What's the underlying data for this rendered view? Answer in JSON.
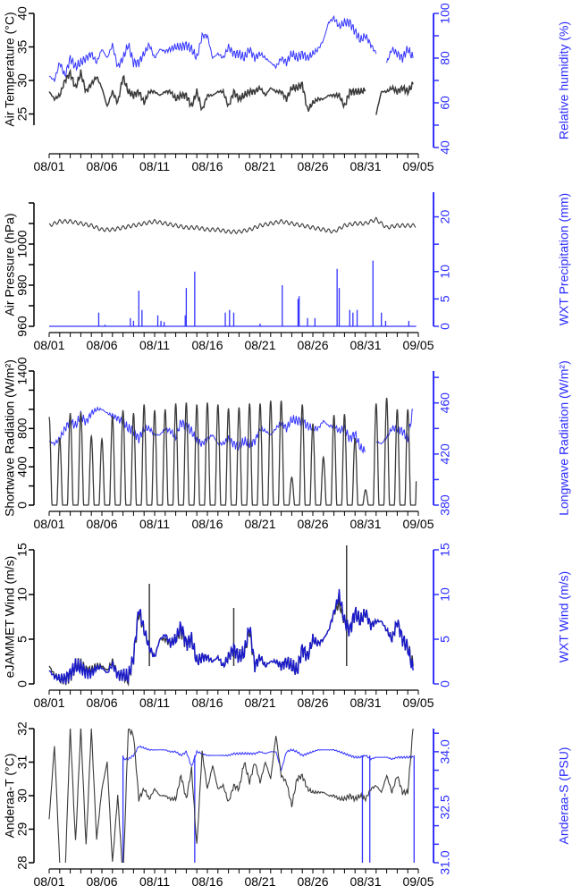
{
  "x_labels": [
    "08/01",
    "08/06",
    "08/11",
    "08/16",
    "08/21",
    "08/26",
    "08/31",
    "09/05"
  ],
  "colors": {
    "primary": "#3a3a3a",
    "secondary": "#3333ff",
    "wind_secondary": "#1a1acc"
  },
  "chart_data": [
    {
      "type": "line",
      "xlabel": "",
      "x_start_day": 0,
      "x_step_days": 0.5,
      "xlim_days": [
        0,
        35
      ],
      "left": {
        "label": "Air Temperature (°C)",
        "ylim": [
          20,
          40
        ],
        "ticks": [
          25,
          30,
          35,
          40
        ],
        "tick_labels": [
          "25",
          "30",
          "35",
          "40"
        ],
        "values": [
          29.5,
          28.5,
          29,
          31,
          32,
          30,
          32,
          29.5,
          30.5,
          31.5,
          30,
          27.5,
          29.5,
          28,
          31.5,
          29.5,
          29,
          29.5,
          28,
          29.5,
          29.5,
          29,
          29.5,
          29.5,
          28.5,
          29,
          29,
          27.5,
          29.5,
          27,
          29,
          29,
          29.5,
          29.5,
          27.5,
          29.5,
          28.5,
          29,
          29.5,
          29.5,
          30,
          29,
          30,
          29.5,
          29.5,
          28.5,
          30,
          30,
          30.5,
          27,
          28,
          28.5,
          28.5,
          29,
          29,
          29,
          27.5,
          29.5,
          29.5,
          29.5,
          29.7,
          null,
          26.5,
          29.5,
          29.5,
          30,
          29.5,
          30,
          29.5,
          30.5
        ]
      },
      "right": {
        "label": "Relative humidity (%)",
        "ylim": [
          40,
          100
        ],
        "ticks": [
          40,
          50,
          60,
          70,
          80,
          90,
          100
        ],
        "tick_labels": [
          "40",
          "60",
          "80",
          "100"
        ],
        "labeled_ticks": [
          40,
          60,
          80,
          100
        ],
        "values": [
          72,
          70,
          78,
          72,
          80,
          76,
          78,
          80,
          82,
          78,
          84,
          80,
          86,
          76,
          80,
          86,
          78,
          78,
          82,
          86,
          80,
          84,
          83,
          84,
          85,
          85,
          86,
          84,
          80,
          90,
          90,
          80,
          82,
          80,
          85,
          82,
          82,
          80,
          84,
          80,
          82,
          80,
          78,
          76,
          80,
          78,
          82,
          80,
          82,
          80,
          82,
          84,
          88,
          96,
          98,
          94,
          96,
          96,
          92,
          88,
          90,
          86,
          82,
          null,
          78,
          84,
          82,
          80,
          84,
          80
        ]
      }
    },
    {
      "type": "line+bar",
      "x_start_day": 0,
      "x_step_days": 1,
      "xlim_days": [
        0,
        35
      ],
      "left": {
        "label": "Air Pressure (hPa)",
        "ylim": [
          960,
          1020
        ],
        "ticks": [
          960,
          970,
          980,
          990,
          1000,
          1010,
          1020
        ],
        "tick_labels": [
          "960",
          "980",
          "1000"
        ],
        "labeled_ticks": [
          960,
          980,
          1000
        ],
        "semidiurnal_amplitude_hpa": 0.9,
        "values": [
          1009,
          1011,
          1011,
          1010,
          1009,
          1007,
          1007,
          1008,
          1009,
          1010,
          1011,
          1010,
          1009,
          1008,
          1008,
          1007,
          1007,
          1006,
          1006,
          1007,
          1009,
          1010,
          1011,
          1010,
          1009,
          1008,
          1007,
          1006,
          1009,
          1010,
          1010,
          1012,
          1008,
          1009,
          1009
        ]
      },
      "right": {
        "label": "WXT Precipitation (mm)",
        "ylim": [
          0,
          24.5
        ],
        "ticks": [
          0,
          5,
          10,
          15,
          20
        ],
        "tick_labels": [
          "0",
          "5",
          "10",
          "20"
        ],
        "labeled_ticks": [
          0,
          5,
          10,
          20
        ],
        "events": [
          [
            4.7,
            2.5
          ],
          [
            5.3,
            0.3
          ],
          [
            7.7,
            1.5
          ],
          [
            8.0,
            1
          ],
          [
            8.5,
            6.5
          ],
          [
            8.8,
            3
          ],
          [
            10.3,
            2
          ],
          [
            10.6,
            1
          ],
          [
            10.9,
            0.8
          ],
          [
            12.9,
            2
          ],
          [
            13.0,
            7
          ],
          [
            13.8,
            10
          ],
          [
            16.7,
            2.5
          ],
          [
            17.1,
            3
          ],
          [
            17.5,
            2.5
          ],
          [
            20.0,
            0.5
          ],
          [
            22.1,
            7.5
          ],
          [
            23.6,
            5
          ],
          [
            23.7,
            5.5
          ],
          [
            24.5,
            1.5
          ],
          [
            25.2,
            1.5
          ],
          [
            27.3,
            10.5
          ],
          [
            27.5,
            7
          ],
          [
            28.5,
            3
          ],
          [
            28.8,
            2.5
          ],
          [
            29.2,
            3
          ],
          [
            30.7,
            12
          ],
          [
            31.5,
            2.5
          ],
          [
            31.9,
            1
          ],
          [
            34.1,
            1
          ]
        ]
      }
    },
    {
      "type": "line",
      "xlim_days": [
        0,
        35
      ],
      "left": {
        "label": "Shortwave Radiation (W/m²)",
        "ylim": [
          0,
          1400
        ],
        "ticks": [
          0,
          200,
          400,
          600,
          800,
          1000,
          1200,
          1400
        ],
        "tick_labels": [
          "0",
          "400",
          "800",
          "1400"
        ],
        "labeled_ticks": [
          0,
          400,
          800,
          1400
        ],
        "daily_peak_values": [
          920,
          700,
          960,
          970,
          720,
          690,
          930,
          990,
          960,
          1050,
          990,
          1000,
          1060,
          1070,
          1050,
          1070,
          1050,
          1010,
          1020,
          1060,
          1060,
          1090,
          1090,
          290,
          1050,
          850,
          500,
          940,
          950,
          700,
          160,
          1060,
          1120,
          1000,
          1000
        ]
      },
      "right": {
        "label": "Longwave Radiation (W/m²)",
        "ylim": [
          380,
          485
        ],
        "ticks": [
          380,
          400,
          420,
          440,
          460,
          480
        ],
        "tick_labels": [
          "380",
          "420",
          "460"
        ],
        "labeled_ticks": [
          380,
          420,
          460
        ],
        "x_start_day": 0,
        "x_step_days": 0.5,
        "values": [
          430,
          428,
          432,
          440,
          446,
          442,
          450,
          445,
          452,
          455,
          455,
          452,
          450,
          448,
          445,
          440,
          438,
          432,
          440,
          440,
          435,
          435,
          440,
          438,
          433,
          445,
          442,
          438,
          430,
          428,
          432,
          435,
          428,
          428,
          432,
          428,
          426,
          430,
          428,
          430,
          440,
          438,
          435,
          440,
          445,
          440,
          447,
          446,
          446,
          442,
          440,
          440,
          446,
          442,
          442,
          438,
          440,
          432,
          436,
          425,
          422,
          null,
          430,
          428,
          433,
          440,
          440,
          438,
          432,
          455
        ]
      }
    },
    {
      "type": "line",
      "x_start_day": 0,
      "x_step_days": 0.5,
      "xlim_days": [
        0,
        35
      ],
      "left": {
        "label": "eJAMMET Wind (m/s)",
        "ylim": [
          0,
          15
        ],
        "ticks": [
          0,
          5,
          10,
          15
        ],
        "tick_labels": [
          "0",
          "5",
          "10",
          "15"
        ],
        "labeled_ticks": [
          0,
          5,
          10,
          15
        ],
        "values": [
          2,
          1,
          0.5,
          0.5,
          1,
          2,
          2,
          1.5,
          1.5,
          2,
          2,
          1.5,
          2.5,
          1,
          1,
          0.5,
          3,
          8,
          6,
          4,
          3,
          5,
          5,
          4.5,
          5,
          6,
          4.5,
          5,
          2.5,
          3,
          3,
          2.5,
          3,
          2,
          3,
          4,
          3,
          3.5,
          6,
          2,
          3,
          2,
          2.5,
          2.5,
          2,
          2.5,
          2,
          1.5,
          4,
          3,
          5,
          4.5,
          5,
          6,
          8,
          9,
          7,
          6,
          8,
          7,
          8,
          6.5,
          7,
          7,
          6,
          5,
          7,
          5,
          4,
          2
        ],
        "spikes": [
          [
            9.5,
            11.2
          ],
          [
            28.2,
            15.5
          ],
          [
            17.5,
            8.5
          ]
        ]
      },
      "right": {
        "label": "WXT Wind (m/s)",
        "ylim": [
          0,
          15
        ],
        "ticks": [
          0,
          5,
          10,
          15
        ],
        "tick_labels": [
          "0",
          "5",
          "10",
          "15"
        ],
        "labeled_ticks": [
          0,
          5,
          10,
          15
        ],
        "values": [
          1.5,
          0.8,
          0.6,
          0.6,
          1.2,
          2,
          1.8,
          1.3,
          1.2,
          1.8,
          1.8,
          1.2,
          2.2,
          1,
          1,
          0.8,
          3,
          8.5,
          6,
          4,
          3,
          5,
          5.5,
          4.5,
          5,
          6.5,
          4.5,
          5,
          2.5,
          3,
          3,
          2.5,
          3,
          2,
          3,
          4,
          3,
          3.5,
          6.5,
          2,
          3,
          2,
          2.5,
          2.5,
          2,
          2.5,
          2,
          1.5,
          4,
          3,
          5,
          4.5,
          5,
          6,
          8,
          10,
          7,
          6,
          8,
          7,
          8,
          6.5,
          7,
          7,
          6,
          5,
          7,
          5,
          4,
          1.5
        ]
      }
    },
    {
      "type": "line",
      "x_start_day": 0,
      "x_step_days": 0.5,
      "xlim_days": [
        0,
        35
      ],
      "left": {
        "label": "Anderaa-T (°C)",
        "ylim": [
          28,
          32
        ],
        "ticks": [
          28,
          29,
          30,
          31,
          32
        ],
        "tick_labels": [
          "28",
          "29",
          "30",
          "31",
          "32"
        ],
        "labeled_ticks": [
          28,
          29,
          30,
          31,
          32
        ],
        "values": [
          29.3,
          31.5,
          28,
          27.6,
          32,
          28.6,
          32,
          28.5,
          32,
          28.7,
          30.2,
          31,
          28,
          30,
          27.5,
          32,
          31.8,
          29.9,
          30.2,
          29.9,
          30.2,
          30,
          30,
          29.9,
          29.9,
          30.6,
          29.9,
          30.8,
          28.5,
          31.3,
          30.2,
          30.9,
          30.2,
          30.3,
          29.8,
          30.3,
          30.2,
          31,
          30.4,
          31,
          30.4,
          31,
          30.5,
          31.8,
          30.6,
          30.4,
          29.7,
          30.5,
          30.6,
          30.2,
          30.1,
          30.1,
          30.1,
          30,
          30,
          29.9,
          29.9,
          30,
          29.9,
          30,
          29.9,
          30.2,
          30.3,
          30.1,
          30.6,
          30.1,
          30.6,
          30.1,
          30.1,
          32
        ]
      },
      "right": {
        "label": "Anderaa-S (PSU)",
        "ylim": [
          31.0,
          34.625
        ],
        "ticks": [
          31.0,
          31.5,
          32.0,
          32.5,
          33.0,
          33.5,
          34.0,
          34.5
        ],
        "tick_labels": [
          "31.0",
          "32.5",
          "34.0"
        ],
        "labeled_ticks": [
          31.0,
          32.5,
          34.0
        ],
        "values": [
          null,
          null,
          null,
          null,
          null,
          null,
          null,
          null,
          null,
          null,
          null,
          null,
          null,
          null,
          33.8,
          33.8,
          33.9,
          34.15,
          34.1,
          34.05,
          34.05,
          34.05,
          34.05,
          34,
          34,
          33.9,
          34.0,
          33.6,
          34,
          33.95,
          33.9,
          33.9,
          33.9,
          33.9,
          33.9,
          33.95,
          33.95,
          33.95,
          33.95,
          33.95,
          34.0,
          33.95,
          34,
          34,
          33.5,
          34,
          34.05,
          34,
          33.9,
          33.95,
          34,
          34.05,
          34.05,
          34.05,
          34.05,
          34,
          33.95,
          33.9,
          33.85,
          33.85,
          33.9,
          33.8,
          33.85,
          33.85,
          33.85,
          33.8,
          33.85,
          33.85,
          33.85,
          33.85
        ],
        "drop_days": [
          7.0,
          13.8,
          29.7,
          30.4,
          34.6
        ]
      }
    }
  ]
}
